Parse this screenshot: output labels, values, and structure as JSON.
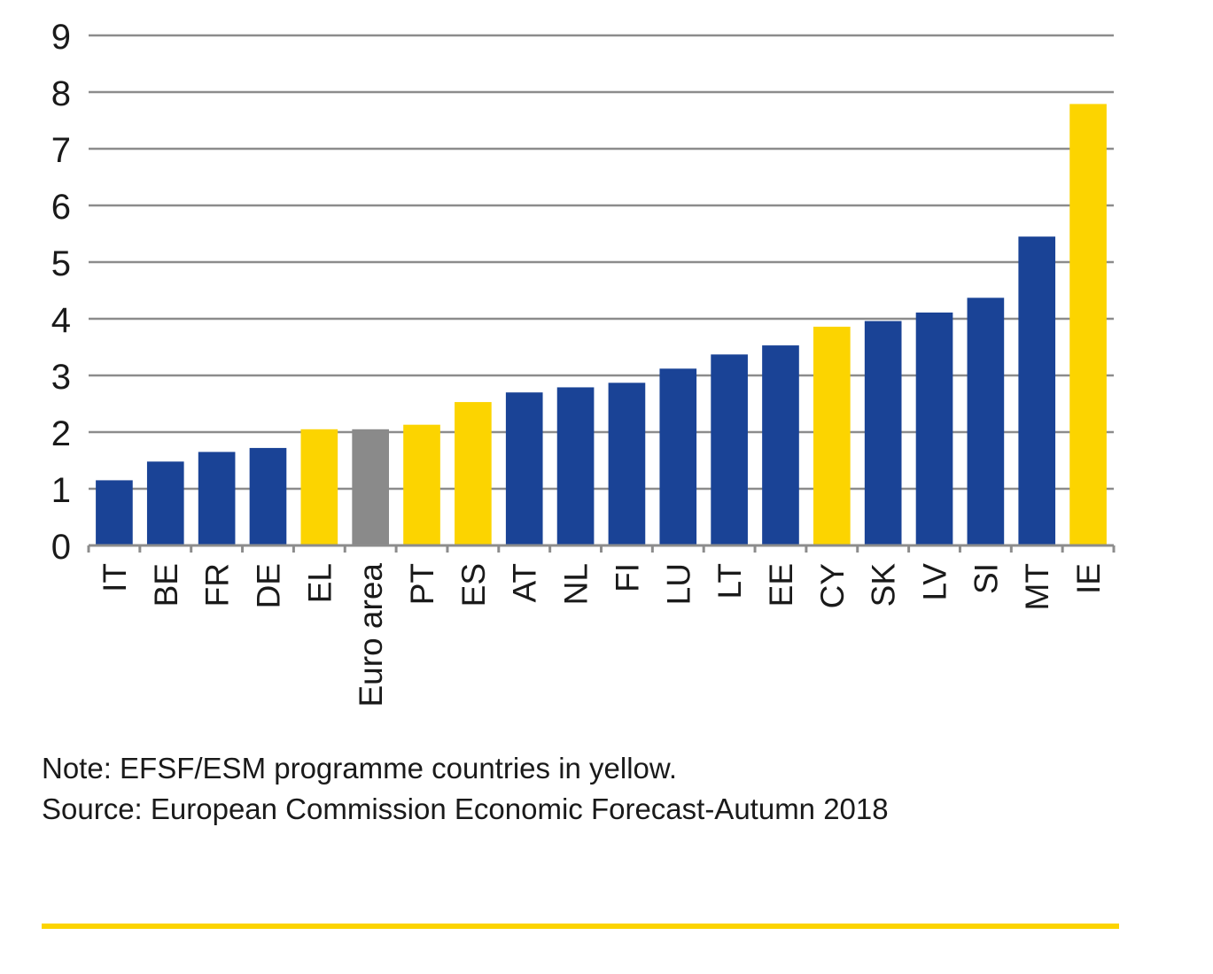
{
  "chart_data": {
    "type": "bar",
    "title": "",
    "xlabel": "",
    "ylabel": "",
    "ylim": [
      0,
      9
    ],
    "yticks": [
      0,
      1,
      2,
      3,
      4,
      5,
      6,
      7,
      8,
      9
    ],
    "grid": true,
    "legend": "none",
    "categories": [
      "IT",
      "BE",
      "FR",
      "DE",
      "EL",
      "Euro area",
      "PT",
      "ES",
      "AT",
      "NL",
      "FI",
      "LU",
      "LT",
      "EE",
      "CY",
      "SK",
      "LV",
      "SI",
      "MT",
      "IE"
    ],
    "values": [
      1.15,
      1.48,
      1.65,
      1.72,
      2.05,
      2.05,
      2.13,
      2.53,
      2.7,
      2.79,
      2.87,
      3.12,
      3.37,
      3.53,
      3.86,
      3.96,
      4.11,
      4.37,
      5.45,
      7.79
    ],
    "bar_groups": [
      "standard",
      "standard",
      "standard",
      "standard",
      "programme",
      "aggregate",
      "programme",
      "programme",
      "standard",
      "standard",
      "standard",
      "standard",
      "standard",
      "standard",
      "programme",
      "standard",
      "standard",
      "standard",
      "standard",
      "programme"
    ],
    "colors": {
      "standard": "#1a4396",
      "programme": "#fcd400",
      "aggregate": "#8a8a8a",
      "grid": "#8c8c8c",
      "rule": "#fcd400"
    }
  },
  "notes": {
    "note": "Note: EFSF/ESM programme countries in yellow.",
    "source": "Source: European Commission Economic Forecast-Autumn 2018"
  }
}
